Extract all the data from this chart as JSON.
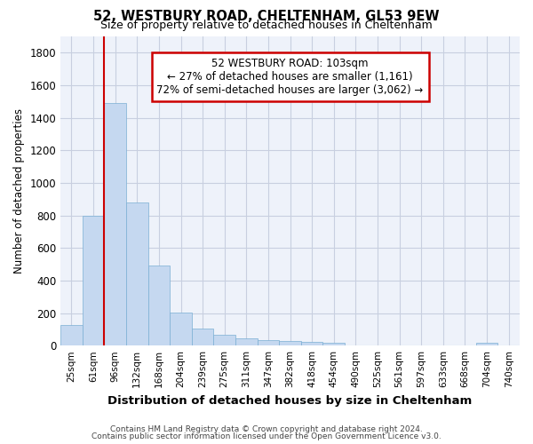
{
  "title1": "52, WESTBURY ROAD, CHELTENHAM, GL53 9EW",
  "title2": "Size of property relative to detached houses in Cheltenham",
  "xlabel": "Distribution of detached houses by size in Cheltenham",
  "ylabel": "Number of detached properties",
  "footer1": "Contains HM Land Registry data © Crown copyright and database right 2024.",
  "footer2": "Contains public sector information licensed under the Open Government Licence v3.0.",
  "bar_labels": [
    "25sqm",
    "61sqm",
    "96sqm",
    "132sqm",
    "168sqm",
    "204sqm",
    "239sqm",
    "275sqm",
    "311sqm",
    "347sqm",
    "382sqm",
    "418sqm",
    "454sqm",
    "490sqm",
    "525sqm",
    "561sqm",
    "597sqm",
    "633sqm",
    "668sqm",
    "704sqm",
    "740sqm"
  ],
  "bar_values": [
    125,
    800,
    1490,
    880,
    490,
    205,
    105,
    65,
    45,
    35,
    30,
    25,
    15,
    0,
    0,
    0,
    0,
    0,
    0,
    15,
    0
  ],
  "bar_color": "#c5d8f0",
  "bar_edgecolor": "#7bafd4",
  "annotation_line1": "52 WESTBURY ROAD: 103sqm",
  "annotation_line2": "← 27% of detached houses are smaller (1,161)",
  "annotation_line3": "72% of semi-detached houses are larger (3,062) →",
  "ylim": [
    0,
    1900
  ],
  "yticks": [
    0,
    200,
    400,
    600,
    800,
    1000,
    1200,
    1400,
    1600,
    1800
  ],
  "property_line_bar_index": 2,
  "annotation_box_facecolor": "#ffffff",
  "annotation_box_edgecolor": "#cc0000",
  "background_color": "#eef2fa",
  "grid_color": "#c8cfe0"
}
